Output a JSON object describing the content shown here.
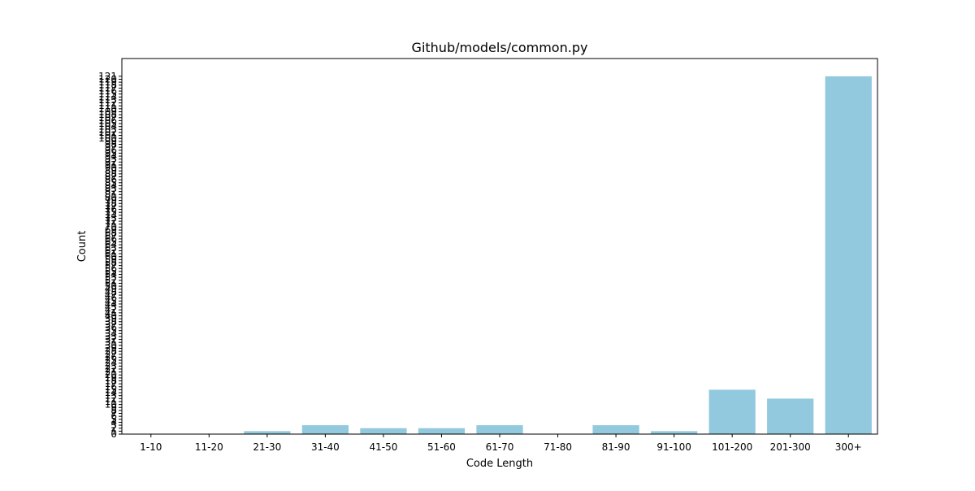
{
  "chart_data": {
    "type": "bar",
    "title": "Github/models/common.py",
    "xlabel": "Code Length",
    "ylabel": "Count",
    "categories": [
      "1-10",
      "11-20",
      "21-30",
      "31-40",
      "41-50",
      "51-60",
      "61-70",
      "71-80",
      "81-90",
      "91-100",
      "101-200",
      "201-300",
      "300+"
    ],
    "values": [
      0,
      0,
      1,
      3,
      2,
      2,
      3,
      0,
      3,
      1,
      15,
      12,
      121
    ],
    "ylim": [
      0,
      127
    ],
    "yticks_max": 121,
    "bar_color": "#92c9de",
    "grid": false
  }
}
